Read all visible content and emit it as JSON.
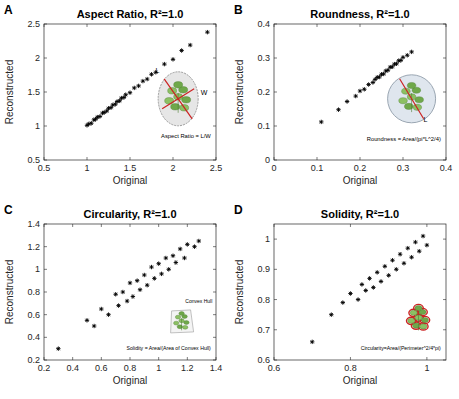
{
  "chart_data": [
    {
      "type": "scatter",
      "panel": "A",
      "title": "Aspect Ratio, R²=1.0",
      "xlabel": "Original",
      "ylabel": "Reconstructed",
      "color": "#000000",
      "marker": "star",
      "x": [
        1.0,
        1.02,
        1.05,
        1.08,
        1.1,
        1.12,
        1.15,
        1.18,
        1.2,
        1.23,
        1.25,
        1.28,
        1.3,
        1.33,
        1.35,
        1.38,
        1.4,
        1.43,
        1.45,
        1.5,
        1.55,
        1.6,
        1.65,
        1.7,
        1.75,
        1.8,
        1.9,
        2.0,
        2.1,
        2.2,
        2.4
      ],
      "values": [
        1.01,
        1.03,
        1.04,
        1.09,
        1.1,
        1.13,
        1.14,
        1.19,
        1.2,
        1.22,
        1.26,
        1.27,
        1.31,
        1.32,
        1.36,
        1.37,
        1.41,
        1.42,
        1.46,
        1.49,
        1.56,
        1.59,
        1.66,
        1.69,
        1.76,
        1.79,
        1.91,
        1.98,
        2.11,
        2.19,
        2.38
      ],
      "xlim": [
        0.5,
        2.5
      ],
      "ylim": [
        0.5,
        2.5
      ],
      "xticks": [
        0.5,
        1,
        1.5,
        2,
        2.5
      ],
      "yticks": [
        0.5,
        1,
        1.5,
        2,
        2.5
      ],
      "annotations": [
        "L",
        "W",
        "Aspect Ratio = L/W"
      ]
    },
    {
      "type": "scatter",
      "panel": "B",
      "title": "Roundness, R²=1.0",
      "xlabel": "Original",
      "ylabel": "Reconstructed",
      "color": "#000000",
      "marker": "star",
      "x": [
        0.11,
        0.15,
        0.17,
        0.19,
        0.2,
        0.21,
        0.22,
        0.23,
        0.235,
        0.24,
        0.245,
        0.25,
        0.255,
        0.26,
        0.265,
        0.27,
        0.275,
        0.28,
        0.285,
        0.29,
        0.295,
        0.3,
        0.31,
        0.32
      ],
      "values": [
        0.112,
        0.148,
        0.172,
        0.188,
        0.203,
        0.208,
        0.222,
        0.228,
        0.237,
        0.243,
        0.244,
        0.252,
        0.253,
        0.262,
        0.264,
        0.273,
        0.274,
        0.282,
        0.283,
        0.292,
        0.293,
        0.302,
        0.308,
        0.318
      ],
      "xlim": [
        0,
        0.4
      ],
      "ylim": [
        0,
        0.4
      ],
      "xticks": [
        0,
        0.1,
        0.2,
        0.3,
        0.4
      ],
      "yticks": [
        0,
        0.1,
        0.2,
        0.3,
        0.4
      ],
      "annotations": [
        "L",
        "Roundness = Area/(pi*L^2/4)"
      ]
    },
    {
      "type": "scatter",
      "panel": "C",
      "title": "Circularity, R²=1.0",
      "xlabel": "Original",
      "ylabel": "Reconstructed",
      "color": "#000000",
      "marker": "star",
      "x": [
        0.3,
        0.5,
        0.55,
        0.6,
        0.65,
        0.7,
        0.72,
        0.75,
        0.78,
        0.8,
        0.82,
        0.85,
        0.87,
        0.9,
        0.92,
        0.95,
        0.97,
        1.0,
        1.02,
        1.05,
        1.07,
        1.1,
        1.12,
        1.15,
        1.18,
        1.2,
        1.25,
        1.28
      ],
      "values": [
        0.3,
        0.55,
        0.5,
        0.65,
        0.6,
        0.78,
        0.68,
        0.8,
        0.72,
        0.88,
        0.76,
        0.9,
        0.82,
        0.95,
        0.86,
        1.02,
        0.92,
        1.05,
        0.96,
        1.1,
        1.0,
        1.12,
        1.06,
        1.18,
        1.1,
        1.22,
        1.2,
        1.25
      ],
      "xlim": [
        0.2,
        1.4
      ],
      "ylim": [
        0.2,
        1.4
      ],
      "xticks": [
        0.2,
        0.4,
        0.6,
        0.8,
        1,
        1.2,
        1.4
      ],
      "yticks": [
        0.2,
        0.4,
        0.6,
        0.8,
        1,
        1.2,
        1.4
      ],
      "annotations": [
        "Convex Hull",
        "Solidity = Area/(Area of Convex Hull)"
      ]
    },
    {
      "type": "scatter",
      "panel": "D",
      "title": "Solidity, R²=1.0",
      "xlabel": "Original",
      "ylabel": "Reconstructed",
      "color": "#000000",
      "marker": "star",
      "x": [
        0.7,
        0.75,
        0.78,
        0.8,
        0.82,
        0.83,
        0.84,
        0.85,
        0.86,
        0.87,
        0.88,
        0.89,
        0.9,
        0.91,
        0.92,
        0.93,
        0.94,
        0.95,
        0.96,
        0.97,
        0.98,
        0.99,
        1.0
      ],
      "values": [
        0.66,
        0.75,
        0.79,
        0.82,
        0.8,
        0.85,
        0.83,
        0.87,
        0.84,
        0.89,
        0.86,
        0.91,
        0.88,
        0.93,
        0.9,
        0.95,
        0.92,
        0.97,
        0.94,
        0.99,
        0.96,
        1.01,
        0.98
      ],
      "xlim": [
        0.6,
        1.05
      ],
      "ylim": [
        0.6,
        1.05
      ],
      "xticks": [
        0.6,
        0.8,
        1
      ],
      "yticks": [
        0.6,
        0.7,
        0.8,
        0.9,
        1
      ],
      "annotations": [
        "Circularity=Area/(Perimeter^2/4*pi)"
      ]
    }
  ]
}
